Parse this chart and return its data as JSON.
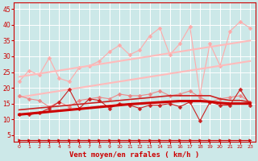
{
  "x": [
    0,
    1,
    2,
    3,
    4,
    5,
    6,
    7,
    8,
    9,
    10,
    11,
    12,
    13,
    14,
    15,
    16,
    17,
    18,
    19,
    20,
    21,
    22,
    23
  ],
  "background_color": "#cce8e8",
  "grid_color": "#ffffff",
  "xlabel": "Vent moyen/en rafales ( km/h )",
  "xlabel_color": "#cc0000",
  "yticks": [
    5,
    10,
    15,
    20,
    25,
    30,
    35,
    40,
    45
  ],
  "ylim": [
    3,
    47
  ],
  "xlim": [
    -0.5,
    23.5
  ],
  "series": [
    {
      "name": "upper_jagged_light",
      "color": "#ffaaaa",
      "linewidth": 0.8,
      "marker": "D",
      "markersize": 2.5,
      "data": [
        22.0,
        25.5,
        24.0,
        29.5,
        23.0,
        22.0,
        26.5,
        27.0,
        28.5,
        31.5,
        33.5,
        30.5,
        32.0,
        36.5,
        39.0,
        30.5,
        34.0,
        39.5,
        18.0,
        34.0,
        27.0,
        38.0,
        41.0,
        39.0
      ]
    },
    {
      "name": "trendline_upper_top",
      "color": "#ffbbbb",
      "linewidth": 1.5,
      "marker": null,
      "data": [
        23.5,
        24.0,
        24.5,
        25.0,
        25.5,
        26.0,
        26.5,
        27.0,
        27.5,
        28.0,
        28.5,
        29.0,
        29.5,
        30.0,
        30.5,
        31.0,
        31.5,
        32.0,
        32.5,
        33.0,
        33.5,
        34.0,
        34.5,
        35.0
      ]
    },
    {
      "name": "trendline_upper_bottom",
      "color": "#ffbbbb",
      "linewidth": 1.5,
      "marker": null,
      "data": [
        17.0,
        17.5,
        18.0,
        18.5,
        19.0,
        19.5,
        20.0,
        20.5,
        21.0,
        21.5,
        22.0,
        22.5,
        23.0,
        23.5,
        24.0,
        24.5,
        25.0,
        25.5,
        26.0,
        26.5,
        27.0,
        27.5,
        28.0,
        28.5
      ]
    },
    {
      "name": "mid_jagged_medium",
      "color": "#ee8888",
      "linewidth": 0.8,
      "marker": "D",
      "markersize": 2.5,
      "data": [
        17.5,
        16.5,
        16.0,
        14.0,
        15.5,
        14.0,
        16.0,
        16.5,
        17.0,
        16.5,
        18.0,
        17.5,
        17.5,
        18.0,
        19.0,
        17.5,
        18.0,
        19.0,
        17.0,
        15.5,
        16.5,
        17.0,
        17.5,
        15.5
      ]
    },
    {
      "name": "lower_jagged_dark",
      "color": "#cc2222",
      "linewidth": 0.8,
      "marker": "D",
      "markersize": 2.5,
      "data": [
        11.5,
        11.5,
        12.0,
        13.5,
        15.5,
        19.5,
        13.5,
        16.5,
        16.0,
        13.5,
        15.0,
        14.5,
        13.5,
        14.5,
        14.5,
        15.0,
        14.0,
        15.5,
        9.5,
        15.5,
        14.5,
        14.5,
        19.5,
        14.5
      ]
    },
    {
      "name": "trendline_main_upper",
      "color": "#cc2222",
      "linewidth": 1.2,
      "marker": null,
      "data": [
        13.0,
        13.3,
        13.6,
        13.9,
        14.2,
        14.5,
        14.8,
        15.1,
        15.4,
        15.7,
        16.0,
        16.3,
        16.6,
        16.9,
        17.2,
        17.5,
        17.5,
        17.5,
        17.5,
        17.5,
        16.5,
        16.0,
        16.0,
        15.5
      ]
    },
    {
      "name": "trendline_main_lower",
      "color": "#cc0000",
      "linewidth": 2.2,
      "marker": null,
      "data": [
        11.5,
        11.8,
        12.1,
        12.4,
        12.7,
        13.0,
        13.3,
        13.6,
        13.9,
        14.2,
        14.5,
        14.8,
        15.0,
        15.2,
        15.4,
        15.6,
        15.8,
        15.8,
        15.8,
        15.6,
        15.2,
        15.0,
        15.0,
        15.0
      ]
    },
    {
      "name": "line_bottom_arrows",
      "color": "#cc0000",
      "linewidth": 0.8,
      "marker": ">",
      "markersize": 2.5,
      "data": [
        3.5,
        3.5,
        3.5,
        3.5,
        3.5,
        3.5,
        3.5,
        3.5,
        3.5,
        3.5,
        3.5,
        3.5,
        3.5,
        3.5,
        3.5,
        3.5,
        3.5,
        3.5,
        3.5,
        3.5,
        3.5,
        3.5,
        3.5,
        3.5
      ]
    }
  ]
}
